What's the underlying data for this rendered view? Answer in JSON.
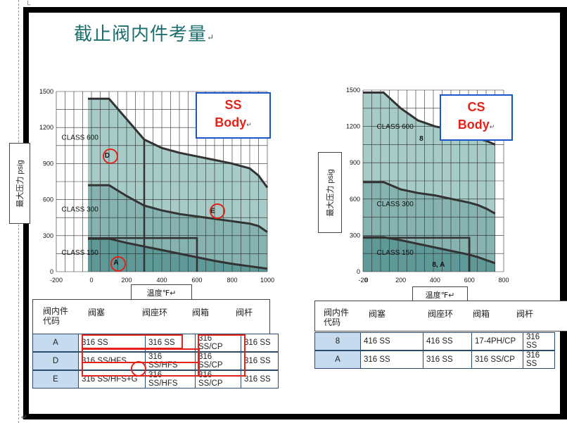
{
  "title": "截止阀内件考量",
  "paragraph_mark": "↵",
  "chart_data": [
    {
      "type": "area",
      "legend": [
        "SS",
        "Body"
      ],
      "xlabel": "温度℉",
      "ylabel": "最大压力 psig",
      "xlim": [
        -200,
        1000
      ],
      "ylim": [
        0,
        1500
      ],
      "x_ticks": [
        "-200",
        "0",
        "200",
        "400",
        "600",
        "800",
        "1000"
      ],
      "y_ticks": [
        "0",
        "300",
        "600",
        "900",
        "1200",
        "1500"
      ],
      "class_labels": [
        "CLASS 600",
        "CLASS 300",
        "CLASS 150"
      ],
      "markers": [
        "D",
        "E",
        "A"
      ],
      "series": [
        {
          "name": "CLASS 600",
          "x": [
            -20,
            100,
            200,
            300,
            400,
            500,
            600,
            700,
            800,
            900,
            950,
            1000
          ],
          "y": [
            1440,
            1440,
            1270,
            1100,
            1030,
            990,
            960,
            930,
            900,
            860,
            800,
            700
          ]
        },
        {
          "name": "CLASS 300",
          "x": [
            -20,
            100,
            200,
            300,
            400,
            500,
            600,
            700,
            800,
            900,
            950,
            1000
          ],
          "y": [
            720,
            720,
            630,
            550,
            510,
            480,
            460,
            440,
            420,
            400,
            380,
            330
          ]
        },
        {
          "name": "CLASS 150",
          "x": [
            -20,
            100,
            200,
            300,
            400,
            500,
            600,
            700,
            800,
            900,
            1000
          ],
          "y": [
            275,
            275,
            240,
            210,
            180,
            150,
            120,
            90,
            65,
            45,
            25
          ]
        }
      ]
    },
    {
      "type": "area",
      "legend": [
        "CS",
        "Body"
      ],
      "xlabel": "温度℉",
      "ylabel": "最大压力 psig",
      "xlim": [
        -20,
        800
      ],
      "ylim": [
        0,
        1500
      ],
      "x_ticks": [
        "-20",
        "0",
        "200",
        "400",
        "600",
        "800"
      ],
      "y_ticks": [
        "0",
        "300",
        "600",
        "900",
        "1200",
        "1500"
      ],
      "class_labels": [
        "CLASS 600",
        "CLASS 300",
        "CLASS 150"
      ],
      "markers": [
        "8",
        "8, A"
      ],
      "series": [
        {
          "name": "CLASS 600",
          "x": [
            -20,
            100,
            200,
            300,
            400,
            500,
            600,
            650,
            700,
            750
          ],
          "y": [
            1480,
            1480,
            1350,
            1250,
            1200,
            1170,
            1120,
            1100,
            1080,
            1050
          ]
        },
        {
          "name": "CLASS 300",
          "x": [
            -20,
            100,
            200,
            300,
            400,
            500,
            600,
            650,
            700,
            750
          ],
          "y": [
            740,
            740,
            680,
            650,
            630,
            600,
            570,
            550,
            520,
            480
          ]
        },
        {
          "name": "CLASS 150",
          "x": [
            -20,
            100,
            200,
            300,
            400,
            500,
            600,
            650,
            700,
            750
          ],
          "y": [
            285,
            285,
            260,
            230,
            200,
            170,
            140,
            120,
            95,
            70
          ]
        }
      ]
    }
  ],
  "tables": [
    {
      "headers": [
        "阀内件代码",
        "阀塞",
        "阀座环",
        "阀箱",
        "阀杆"
      ],
      "rows": [
        [
          "A",
          "316 SS",
          "316 SS",
          "316 SS/CP",
          "316 SS"
        ],
        [
          "D",
          "316 SS/HFS",
          "316 SS/HFS",
          "316 SS/CP",
          "316 SS"
        ],
        [
          "E",
          "316 SS/HFS+G",
          "316 SS/HFS",
          "316 SS/CP",
          "316 SS"
        ]
      ]
    },
    {
      "headers": [
        "阀内件代码",
        "阀塞",
        "阀座环",
        "阀箱",
        "阀杆"
      ],
      "rows": [
        [
          "8",
          "416 SS",
          "416 SS",
          "17-4PH/CP",
          "316 SS"
        ],
        [
          "A",
          "316 SS",
          "316 SS",
          "316 SS/CP",
          "316 SS"
        ]
      ]
    }
  ]
}
